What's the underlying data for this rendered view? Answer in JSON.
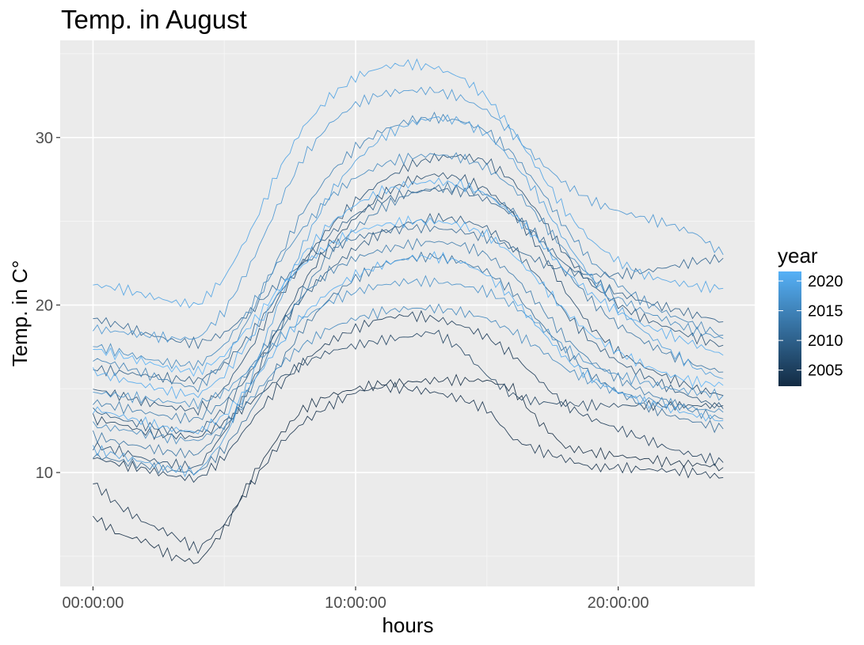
{
  "chart_data": {
    "type": "line",
    "title": "Temp. in August",
    "xlabel": "hours",
    "ylabel": "Temp. in C°",
    "x_ticks": [
      "00:00:00",
      "10:00:00",
      "20:00:00"
    ],
    "x_range_hours": [
      -1.25,
      25.2
    ],
    "y_ticks": [
      10,
      20,
      30
    ],
    "ylim": [
      3.2,
      35.8
    ],
    "grid": true,
    "legend": {
      "title": "year",
      "position": "right",
      "type": "colorbar",
      "ticks": [
        2020,
        2015,
        2010,
        2005
      ],
      "low_color": "#132B43",
      "high_color": "#56B1F7"
    },
    "series": [
      {
        "year": 2003,
        "values": [
          7.4,
          6.3,
          5.9,
          5.0,
          4.6,
          6.6,
          9.6,
          12.0,
          13.8,
          14.6,
          15.0,
          15.3,
          15.4,
          15.5,
          15.5,
          15.5,
          15.0,
          13.0,
          11.5,
          11.2,
          11.0,
          10.8,
          10.6,
          10.5,
          10.3
        ]
      },
      {
        "year": 2004,
        "values": [
          9.4,
          8.0,
          7.0,
          6.3,
          5.4,
          6.9,
          9.2,
          11.5,
          13.0,
          14.0,
          14.8,
          15.1,
          15.0,
          14.8,
          14.4,
          13.8,
          12.0,
          11.3,
          10.8,
          10.3,
          10.3,
          10.2,
          10.1,
          10.0,
          9.7
        ]
      },
      {
        "year": 2005,
        "values": [
          10.9,
          10.5,
          10.2,
          9.8,
          9.6,
          10.9,
          13.0,
          15.0,
          16.6,
          17.8,
          18.6,
          19.2,
          19.4,
          19.2,
          18.8,
          18.1,
          17.0,
          15.5,
          14.0,
          13.2,
          12.6,
          12.0,
          11.4,
          11.0,
          10.6
        ]
      },
      {
        "year": 2006,
        "values": [
          13.2,
          12.9,
          12.4,
          12.2,
          12.1,
          13.0,
          14.2,
          15.5,
          16.5,
          17.2,
          17.6,
          17.9,
          18.1,
          18.4,
          17.4,
          15.8,
          14.6,
          14.2,
          14.1,
          14.0,
          14.0,
          14.0,
          14.0,
          14.0,
          14.0
        ]
      },
      {
        "year": 2007,
        "values": [
          11.6,
          11.3,
          10.8,
          10.5,
          10.3,
          12.4,
          15.2,
          18.5,
          21.3,
          23.6,
          25.2,
          26.6,
          27.4,
          27.8,
          27.6,
          26.9,
          25.5,
          23.4,
          20.8,
          18.6,
          17.2,
          16.3,
          15.6,
          15.0,
          14.6
        ]
      },
      {
        "year": 2008,
        "values": [
          15.0,
          14.6,
          14.2,
          13.9,
          13.7,
          15.0,
          17.4,
          20.2,
          22.6,
          24.6,
          26.2,
          27.4,
          28.3,
          28.8,
          28.9,
          28.6,
          27.4,
          25.4,
          23.0,
          21.2,
          20.0,
          19.2,
          18.6,
          18.0,
          17.6
        ]
      },
      {
        "year": 2009,
        "values": [
          13.7,
          13.2,
          12.8,
          12.5,
          12.4,
          13.8,
          16.0,
          18.4,
          20.5,
          22.1,
          23.4,
          24.3,
          24.9,
          25.2,
          25.1,
          24.6,
          23.4,
          21.6,
          19.5,
          17.8,
          16.6,
          15.8,
          15.0,
          14.4,
          13.8
        ]
      },
      {
        "year": 2010,
        "values": [
          16.2,
          16.0,
          15.8,
          15.6,
          15.5,
          16.4,
          18.2,
          20.5,
          22.6,
          24.2,
          25.4,
          26.2,
          26.7,
          26.9,
          26.8,
          26.3,
          25.4,
          24.0,
          22.4,
          21.4,
          20.7,
          20.2,
          19.8,
          19.4,
          19.0
        ]
      },
      {
        "year": 2011,
        "values": [
          19.2,
          18.8,
          18.3,
          17.9,
          17.7,
          18.3,
          19.6,
          21.2,
          22.5,
          23.4,
          24.0,
          24.4,
          24.6,
          24.6,
          24.4,
          24.0,
          23.4,
          22.6,
          22.0,
          21.8,
          21.8,
          22.0,
          22.3,
          22.6,
          22.8
        ]
      },
      {
        "year": 2012,
        "values": [
          11.0,
          10.7,
          10.4,
          10.1,
          10.0,
          11.4,
          13.6,
          16.2,
          18.6,
          20.4,
          21.6,
          22.4,
          22.8,
          22.9,
          22.6,
          22.0,
          20.8,
          19.0,
          17.2,
          15.8,
          14.8,
          14.0,
          13.4,
          13.0,
          12.6
        ]
      },
      {
        "year": 2013,
        "values": [
          12.2,
          11.8,
          11.5,
          11.2,
          11.1,
          12.6,
          15.0,
          18.0,
          20.8,
          23.0,
          24.6,
          25.8,
          26.6,
          27.0,
          27.0,
          26.6,
          25.6,
          24.0,
          22.0,
          20.2,
          18.8,
          17.8,
          17.0,
          16.4,
          16.0
        ]
      },
      {
        "year": 2014,
        "values": [
          14.2,
          13.9,
          13.6,
          13.3,
          13.2,
          14.2,
          16.2,
          18.6,
          20.6,
          22.0,
          22.8,
          23.3,
          23.6,
          23.8,
          23.6,
          23.0,
          21.8,
          20.0,
          18.0,
          16.6,
          15.6,
          14.8,
          14.2,
          13.6,
          13.2
        ]
      },
      {
        "year": 2015,
        "values": [
          16.8,
          16.4,
          15.9,
          15.4,
          15.0,
          16.6,
          19.4,
          22.6,
          25.6,
          27.8,
          29.4,
          30.4,
          31.0,
          31.2,
          31.0,
          30.4,
          29.0,
          27.0,
          24.6,
          22.6,
          21.2,
          20.2,
          19.4,
          18.8,
          18.2
        ]
      },
      {
        "year": 2016,
        "values": [
          12.8,
          12.6,
          12.3,
          12.0,
          11.9,
          12.8,
          14.4,
          16.2,
          17.6,
          18.6,
          19.2,
          19.6,
          19.8,
          19.8,
          19.6,
          19.2,
          18.4,
          17.4,
          16.2,
          15.4,
          14.8,
          14.4,
          14.1,
          13.8,
          13.6
        ]
      },
      {
        "year": 2016,
        "values": [
          17.6,
          17.2,
          16.8,
          16.5,
          16.4,
          17.6,
          19.8,
          22.4,
          24.6,
          26.4,
          27.6,
          28.4,
          28.8,
          29.0,
          28.8,
          28.2,
          27.0,
          25.2,
          23.2,
          21.6,
          20.4,
          19.6,
          19.0,
          18.4,
          18.0
        ]
      },
      {
        "year": 2017,
        "values": [
          14.8,
          14.6,
          14.4,
          14.2,
          14.1,
          14.8,
          16.2,
          17.8,
          19.2,
          20.2,
          20.8,
          21.2,
          21.4,
          21.4,
          21.2,
          20.8,
          20.0,
          18.8,
          17.4,
          16.4,
          15.8,
          15.4,
          15.0,
          14.8,
          14.6
        ]
      },
      {
        "year": 2018,
        "values": [
          18.6,
          18.4,
          18.2,
          18.0,
          18.0,
          19.6,
          22.4,
          25.8,
          28.8,
          30.8,
          32.0,
          32.6,
          32.8,
          32.8,
          32.4,
          31.6,
          30.2,
          28.6,
          27.2,
          26.2,
          25.6,
          25.2,
          24.8,
          24.2,
          23.0
        ]
      },
      {
        "year": 2019,
        "values": [
          11.4,
          11.0,
          10.6,
          10.2,
          10.0,
          12.0,
          15.6,
          19.8,
          23.6,
          26.6,
          28.6,
          30.0,
          30.8,
          31.2,
          31.0,
          30.2,
          28.6,
          26.4,
          23.8,
          21.6,
          19.8,
          18.4,
          17.2,
          16.2,
          15.6
        ]
      },
      {
        "year": 2020,
        "values": [
          21.2,
          21.0,
          20.6,
          20.2,
          20.0,
          21.6,
          24.4,
          27.8,
          30.6,
          32.4,
          33.6,
          34.2,
          34.4,
          34.2,
          33.6,
          32.4,
          30.4,
          28.0,
          25.6,
          23.8,
          22.6,
          21.8,
          21.4,
          21.1,
          21.0
        ]
      },
      {
        "year": 2021,
        "values": [
          13.8,
          13.4,
          13.0,
          12.6,
          12.4,
          13.4,
          15.2,
          17.4,
          19.4,
          20.8,
          21.8,
          22.4,
          22.8,
          22.9,
          22.6,
          21.8,
          20.4,
          18.6,
          16.8,
          15.6,
          14.8,
          14.2,
          13.8,
          13.4,
          13.1
        ]
      },
      {
        "year": 2021,
        "values": [
          16.0,
          15.6,
          15.2,
          14.8,
          14.6,
          15.8,
          18.0,
          20.6,
          23.0,
          24.8,
          26.0,
          26.8,
          27.2,
          27.4,
          27.2,
          26.6,
          25.4,
          23.8,
          22.0,
          20.6,
          19.6,
          18.8,
          18.2,
          17.6,
          17.0
        ]
      },
      {
        "year": 2022,
        "values": [
          17.4,
          17.0,
          16.6,
          16.2,
          16.0,
          17.0,
          18.8,
          20.8,
          22.4,
          23.6,
          24.4,
          24.8,
          25.0,
          25.0,
          24.8,
          24.2,
          23.0,
          21.4,
          19.6,
          18.2,
          17.2,
          16.4,
          15.8,
          15.4,
          15.2
        ]
      }
    ]
  }
}
